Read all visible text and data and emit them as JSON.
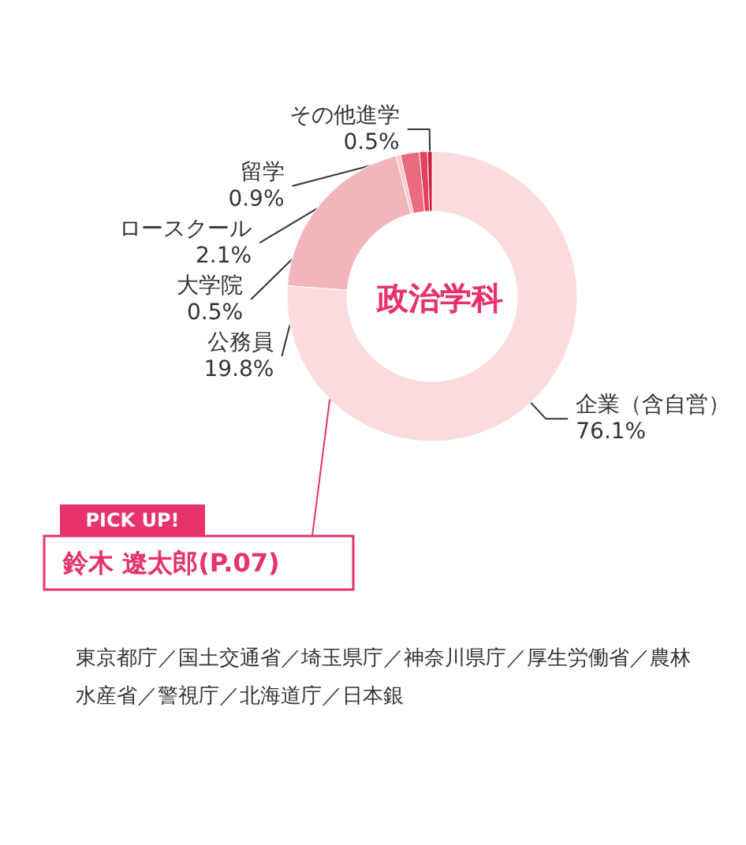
{
  "chart_data": {
    "type": "donut",
    "title": "政治学科",
    "categories": [
      "企業（含自営）",
      "公務員",
      "大学院",
      "ロースクール",
      "留学",
      "その他進学"
    ],
    "values": [
      76.1,
      19.8,
      0.5,
      2.1,
      0.9,
      0.5
    ],
    "value_labels": [
      "76.1%",
      "19.8%",
      "0.5%",
      "2.1%",
      "0.9%",
      "0.5%"
    ],
    "colors": [
      "#fadcdf",
      "#f3b5bc",
      "#f6c7cc",
      "#ea6a80",
      "#e4405f",
      "#c81e3c"
    ],
    "legend": false,
    "annotations": [
      "PICK UP!",
      "鈴木 遼太郎(P.07)",
      "東京都庁／国土交通省／埼玉県庁／神奈川県庁／厚生労働省／農林水産省／警視庁／北海道庁／日本銀"
    ]
  }
}
